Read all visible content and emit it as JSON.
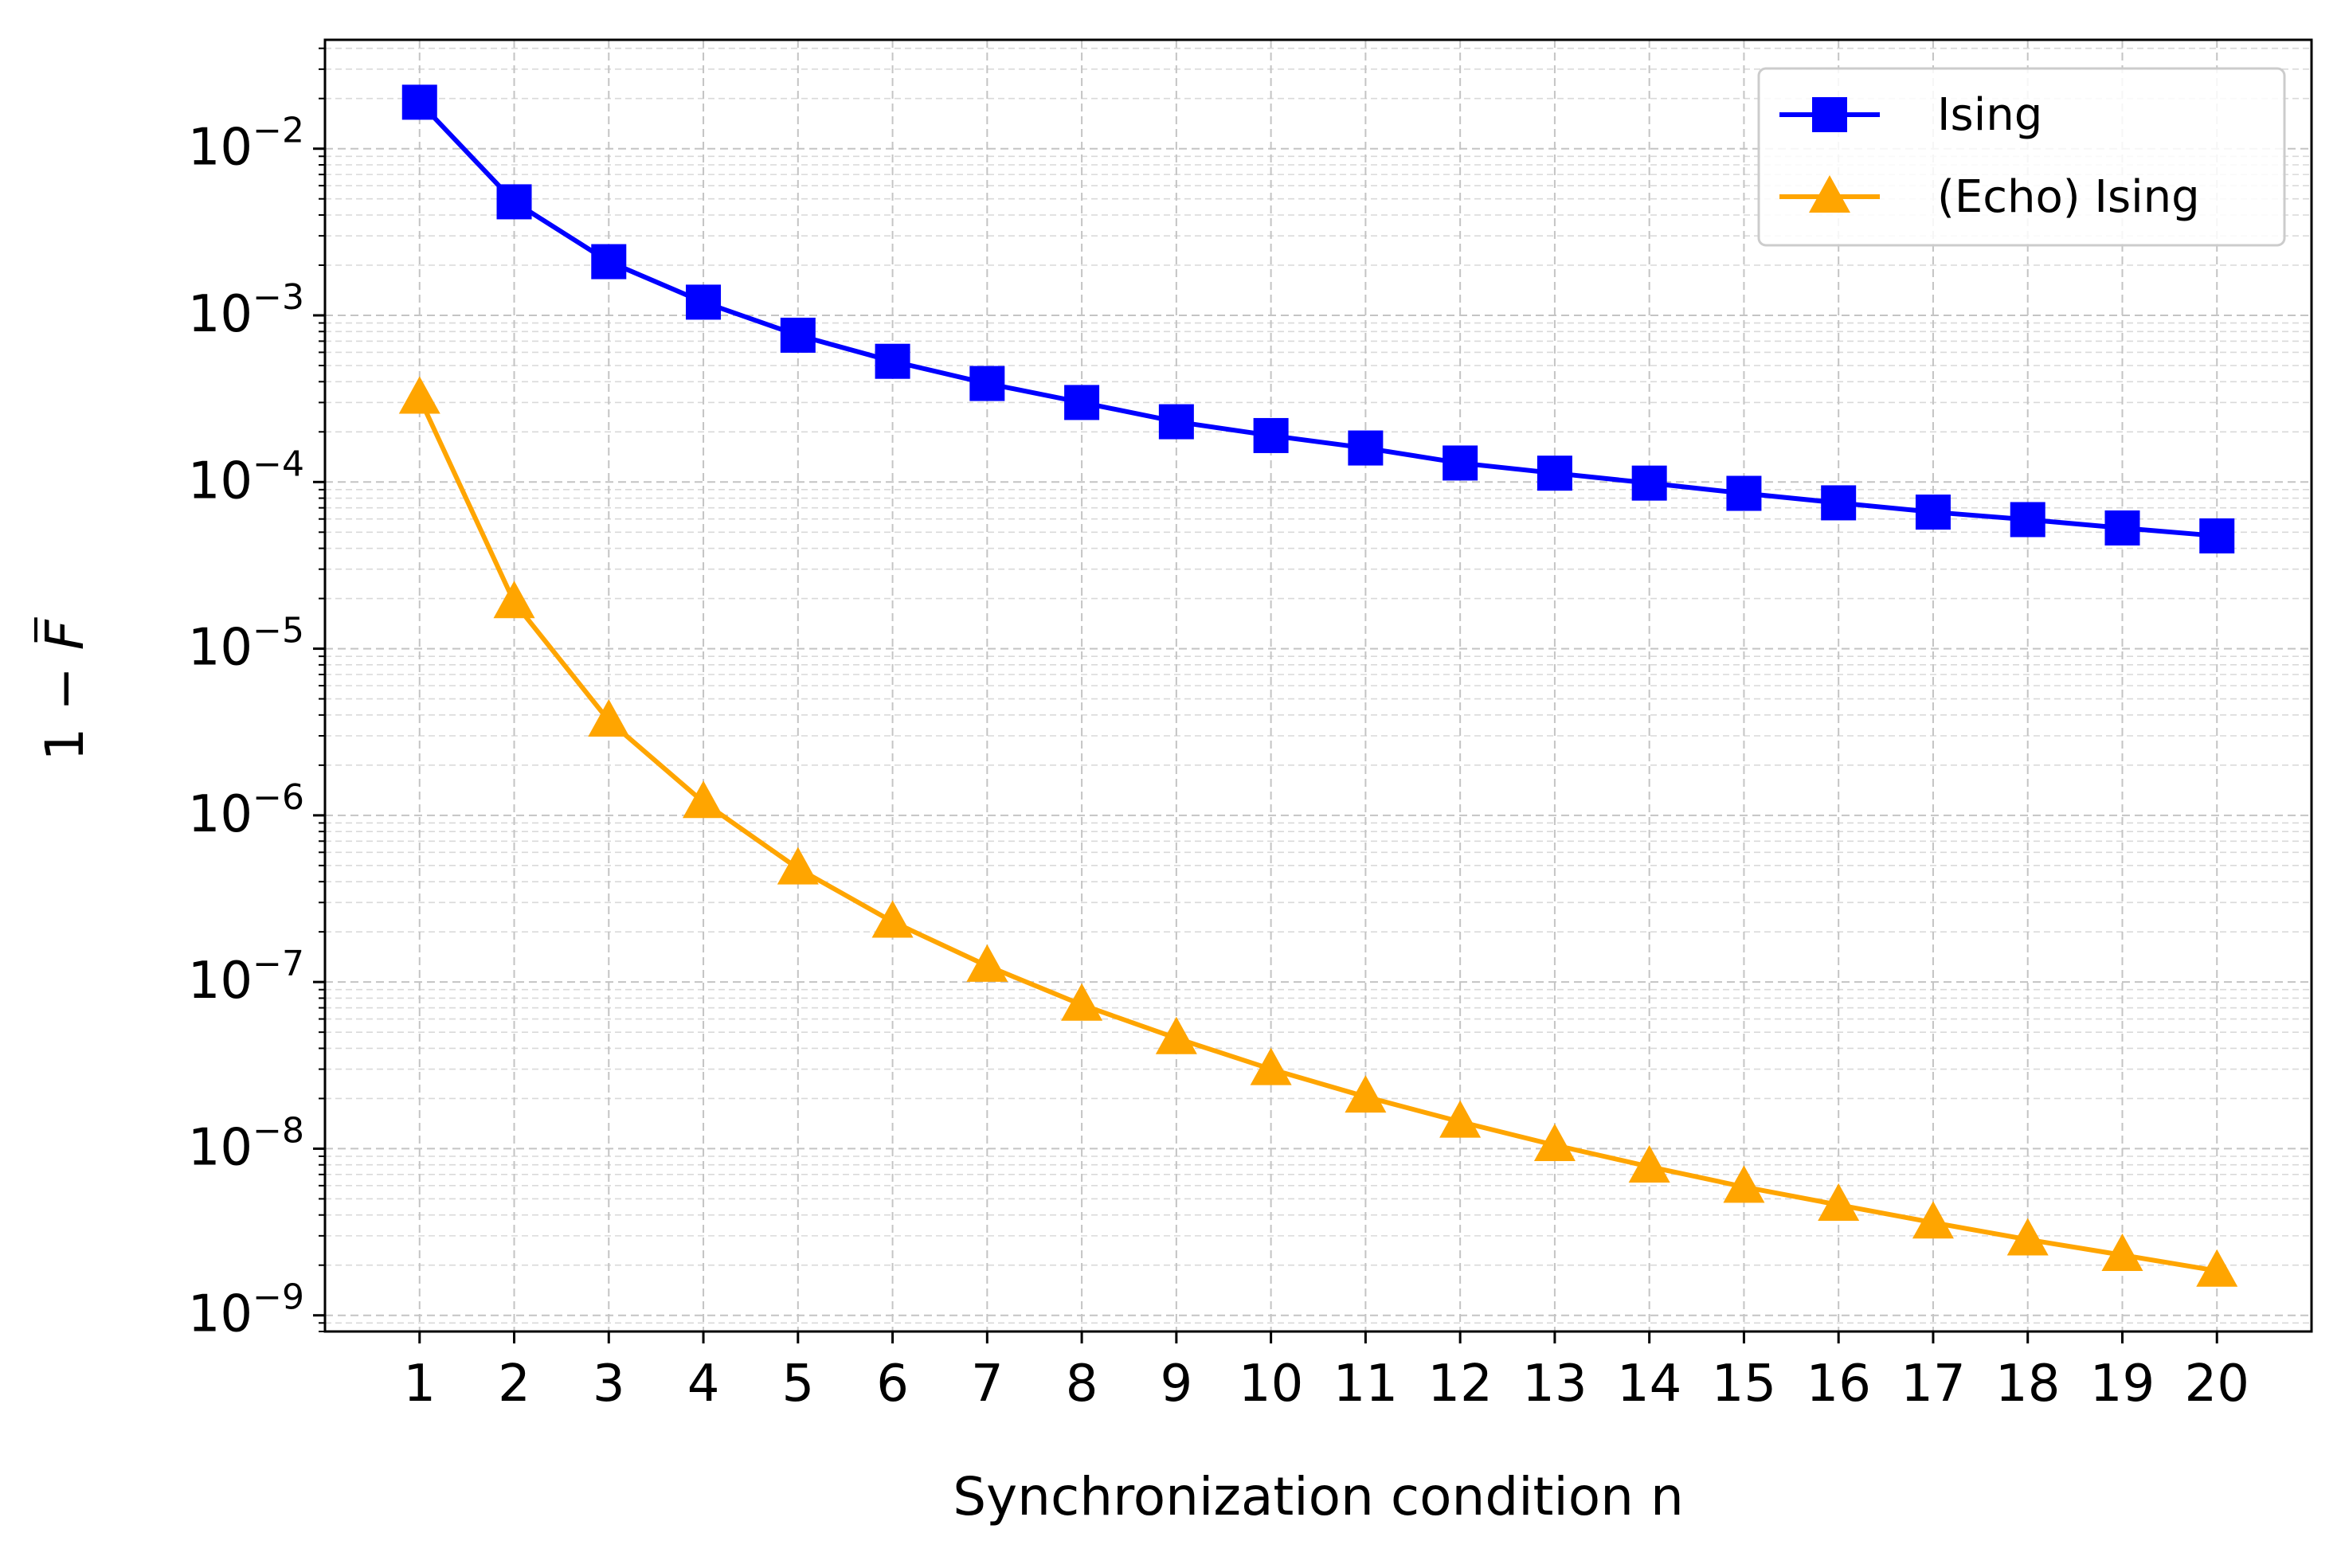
{
  "chart_data": {
    "type": "line",
    "title": "",
    "xlabel": "Synchronization condition n",
    "ylabel_parts": {
      "prefix": "1 − ",
      "symbol": "F",
      "accent": "¯"
    },
    "yscale": "log",
    "ylim": [
      8e-10,
      0.045
    ],
    "xlim": [
      0,
      21
    ],
    "grid": true,
    "grid_minor": true,
    "legend_position": "top-right",
    "categories": [
      1,
      2,
      3,
      4,
      5,
      6,
      7,
      8,
      9,
      10,
      11,
      12,
      13,
      14,
      15,
      16,
      17,
      18,
      19,
      20
    ],
    "y_ticks": [
      {
        "base": "10",
        "exp": "−2",
        "value": 0.01
      },
      {
        "base": "10",
        "exp": "−3",
        "value": 0.001
      },
      {
        "base": "10",
        "exp": "−4",
        "value": 0.0001
      },
      {
        "base": "10",
        "exp": "−5",
        "value": 1e-05
      },
      {
        "base": "10",
        "exp": "−6",
        "value": 1e-06
      },
      {
        "base": "10",
        "exp": "−7",
        "value": 1e-07
      },
      {
        "base": "10",
        "exp": "−8",
        "value": 1e-08
      },
      {
        "base": "10",
        "exp": "−9",
        "value": 1e-09
      }
    ],
    "series": [
      {
        "name": "Ising",
        "color": "#0000ff",
        "marker": "square",
        "values": [
          0.019,
          0.0048,
          0.0021,
          0.0012,
          0.00076,
          0.00053,
          0.00039,
          0.0003,
          0.00023,
          0.00019,
          0.00016,
          0.00013,
          0.000113,
          9.85e-05,
          8.55e-05,
          7.5e-05,
          6.6e-05,
          5.95e-05,
          5.3e-05,
          4.75e-05
        ]
      },
      {
        "name": "(Echo) Ising",
        "color": "#ffa500",
        "marker": "triangle",
        "values": [
          0.00032,
          1.9e-05,
          3.7e-06,
          1.2e-06,
          4.8e-07,
          2.3e-07,
          1.25e-07,
          7.3e-08,
          4.6e-08,
          3e-08,
          2.05e-08,
          1.45e-08,
          1.05e-08,
          7.8e-09,
          5.9e-09,
          4.6e-09,
          3.6e-09,
          2.85e-09,
          2.3e-09,
          1.85e-09
        ]
      }
    ]
  }
}
